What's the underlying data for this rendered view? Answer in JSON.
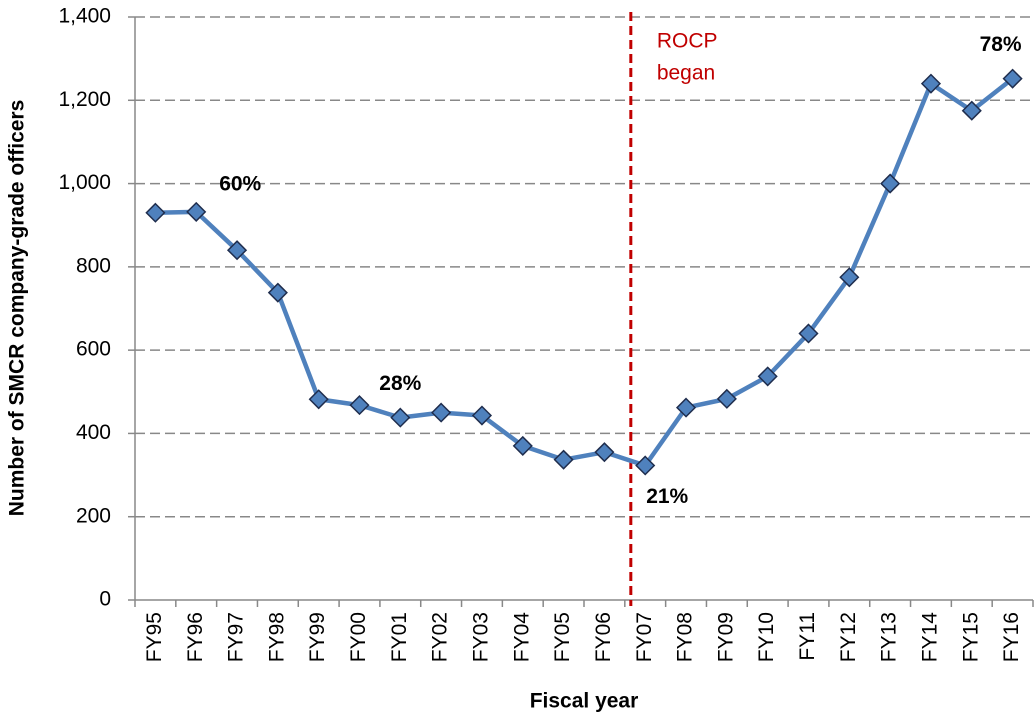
{
  "chart_data": {
    "type": "line",
    "x_label": "Fiscal year",
    "y_label": "Number of SMCR company-grade officers",
    "categories": [
      "FY95",
      "FY96",
      "FY97",
      "FY98",
      "FY99",
      "FY00",
      "FY01",
      "FY02",
      "FY03",
      "FY04",
      "FY05",
      "FY06",
      "FY07",
      "FY08",
      "FY09",
      "FY10",
      "FY11",
      "FY12",
      "FY13",
      "FY14",
      "FY15",
      "FY16"
    ],
    "series": [
      {
        "color": "#4f81bd",
        "marker_stroke": "#1f2d4d",
        "values": [
          930,
          932,
          840,
          738,
          482,
          468,
          438,
          450,
          443,
          370,
          337,
          355,
          323,
          462,
          483,
          537,
          640,
          775,
          1000,
          1240,
          1175,
          1252
        ]
      }
    ],
    "ylim": [
      0,
      1400
    ],
    "yticks": [
      0,
      200,
      400,
      600,
      800,
      {
        "value": 1000,
        "label": "1,000"
      },
      {
        "value": 1200,
        "label": "1,200"
      },
      {
        "value": 1400,
        "label": "1,400"
      }
    ],
    "grid": true,
    "annotations": [
      "60%",
      "28%",
      "21%",
      "78%"
    ],
    "vline_label": [
      "ROCP",
      "began"
    ],
    "vline_color": "#c00000"
  }
}
